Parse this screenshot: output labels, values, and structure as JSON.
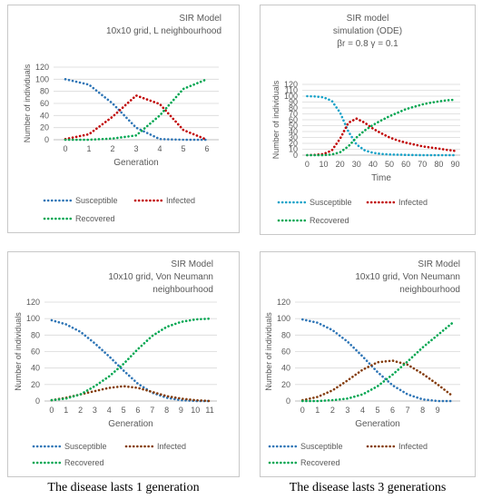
{
  "colors": {
    "susceptible": "#2e75b6",
    "infected": "#c00000",
    "recovered": "#00a651",
    "infected_brown": "#843c0c",
    "axis": "#595959",
    "grid": "#d9d9d9"
  },
  "captions": {
    "left": "The disease lasts 1 generation",
    "right": "The disease lasts 3 generations"
  },
  "chart_data": [
    {
      "type": "line",
      "title_lines": [
        "SIR Model",
        "10x10 grid, L neighbourhood"
      ],
      "xlabel": "Generation",
      "ylabel": "Number of individuals",
      "xlim": [
        -0.5,
        6.5
      ],
      "ylim": [
        0,
        120
      ],
      "xticks": [
        0,
        1,
        2,
        3,
        4,
        5,
        6
      ],
      "yticks": [
        0,
        20,
        40,
        60,
        80,
        100,
        120
      ],
      "grid": true,
      "legend": "bottom",
      "series": [
        {
          "name": "Susceptible",
          "color": "#2e75b6",
          "x": [
            0,
            1,
            2,
            3,
            4,
            5,
            6
          ],
          "y": [
            100,
            91,
            60,
            20,
            1,
            0,
            0
          ]
        },
        {
          "name": "Infected",
          "color": "#c00000",
          "x": [
            0,
            1,
            2,
            3,
            4,
            5,
            6
          ],
          "y": [
            1,
            9,
            38,
            73,
            59,
            16,
            0
          ]
        },
        {
          "name": "Recovered",
          "color": "#00a651",
          "x": [
            0,
            1,
            2,
            3,
            4,
            5,
            6
          ],
          "y": [
            0,
            0,
            2,
            7,
            40,
            84,
            100
          ]
        }
      ]
    },
    {
      "type": "line",
      "title_lines": [
        "SIR model",
        "simulation (ODE)",
        "βr = 0.8  γ = 0.1"
      ],
      "xlabel": "Time",
      "ylabel": "Number of individuals",
      "xlim": [
        -3,
        93
      ],
      "ylim": [
        0,
        120
      ],
      "xticks": [
        0,
        10,
        20,
        30,
        40,
        50,
        60,
        70,
        80,
        90
      ],
      "yticks": [
        0,
        10,
        20,
        30,
        40,
        50,
        60,
        70,
        80,
        90,
        100,
        110,
        120
      ],
      "grid": true,
      "legend": "bottom",
      "series": [
        {
          "name": "Susceptible",
          "color": "#17a2c8",
          "x": [
            0,
            5,
            10,
            15,
            20,
            25,
            30,
            35,
            40,
            45,
            50,
            60,
            70,
            80,
            90
          ],
          "y": [
            100,
            99.5,
            98,
            92,
            72,
            40,
            18,
            8,
            4,
            2,
            1,
            0.5,
            0,
            0,
            0
          ]
        },
        {
          "name": "Infected",
          "color": "#c00000",
          "x": [
            0,
            5,
            10,
            15,
            20,
            25,
            30,
            35,
            40,
            45,
            50,
            55,
            60,
            65,
            70,
            75,
            80,
            85,
            90
          ],
          "y": [
            0,
            0.5,
            2,
            8,
            28,
            55,
            62,
            55,
            45,
            37,
            30,
            25,
            21,
            18,
            15,
            13,
            11,
            9,
            7
          ]
        },
        {
          "name": "Recovered",
          "color": "#00a651",
          "x": [
            0,
            5,
            10,
            15,
            20,
            25,
            30,
            35,
            40,
            45,
            50,
            55,
            60,
            65,
            70,
            75,
            80,
            85,
            90
          ],
          "y": [
            0,
            0,
            0,
            1,
            5,
            15,
            30,
            42,
            51,
            59,
            66,
            72,
            78,
            82,
            86,
            89,
            91,
            93,
            94
          ]
        }
      ]
    },
    {
      "type": "line",
      "title_lines": [
        "SIR Model",
        "10x10 grid, Von Neumann",
        "neighbourhood"
      ],
      "xlabel": "Generation",
      "ylabel": "Number of individuals",
      "xlim": [
        -0.5,
        11.5
      ],
      "ylim": [
        0,
        120
      ],
      "xticks": [
        0,
        1,
        2,
        3,
        4,
        5,
        6,
        7,
        8,
        9,
        10,
        11
      ],
      "yticks": [
        0,
        20,
        40,
        60,
        80,
        100,
        120
      ],
      "grid": true,
      "legend": "bottom",
      "series": [
        {
          "name": "Susceptible",
          "color": "#2e75b6",
          "x": [
            0,
            1,
            2,
            3,
            4,
            5,
            6,
            7,
            8,
            9,
            10,
            11
          ],
          "y": [
            98,
            93,
            84,
            70,
            54,
            37,
            21,
            10,
            4,
            1,
            0,
            0
          ]
        },
        {
          "name": "Infected",
          "color": "#843c0c",
          "x": [
            0,
            1,
            2,
            3,
            4,
            5,
            6,
            7,
            8,
            9,
            10,
            11
          ],
          "y": [
            1,
            4,
            8,
            12,
            16,
            18,
            16,
            11,
            6,
            3,
            1,
            0
          ]
        },
        {
          "name": "Recovered",
          "color": "#00a651",
          "x": [
            0,
            1,
            2,
            3,
            4,
            5,
            6,
            7,
            8,
            9,
            10,
            11
          ],
          "y": [
            1,
            3,
            8,
            18,
            30,
            45,
            63,
            79,
            90,
            96,
            99,
            100
          ]
        }
      ]
    },
    {
      "type": "line",
      "title_lines": [
        "SIR Model",
        "10x10 grid, Von Neumann",
        "neighbourhood"
      ],
      "xlabel": "Generation",
      "ylabel": "Number of individuals",
      "xlim": [
        -0.5,
        10.5
      ],
      "ylim": [
        0,
        120
      ],
      "xticks": [
        0,
        1,
        2,
        3,
        4,
        5,
        6,
        7,
        8,
        9
      ],
      "yticks": [
        0,
        20,
        40,
        60,
        80,
        100,
        120
      ],
      "grid": true,
      "legend": "bottom",
      "series": [
        {
          "name": "Susceptible",
          "color": "#2e75b6",
          "x": [
            0,
            1,
            2,
            3,
            4,
            5,
            6,
            7,
            8,
            9,
            10
          ],
          "y": [
            99,
            95,
            86,
            72,
            54,
            35,
            19,
            8,
            2,
            0,
            0
          ]
        },
        {
          "name": "Infected",
          "color": "#843c0c",
          "x": [
            0,
            1,
            2,
            3,
            4,
            5,
            6,
            7,
            8,
            9,
            10
          ],
          "y": [
            1,
            5,
            13,
            25,
            38,
            47,
            49,
            44,
            33,
            20,
            6
          ]
        },
        {
          "name": "Recovered",
          "color": "#00a651",
          "x": [
            0,
            1,
            2,
            3,
            4,
            5,
            6,
            7,
            8,
            9,
            10
          ],
          "y": [
            0,
            0,
            1,
            3,
            8,
            18,
            32,
            48,
            65,
            80,
            95
          ]
        }
      ]
    }
  ]
}
